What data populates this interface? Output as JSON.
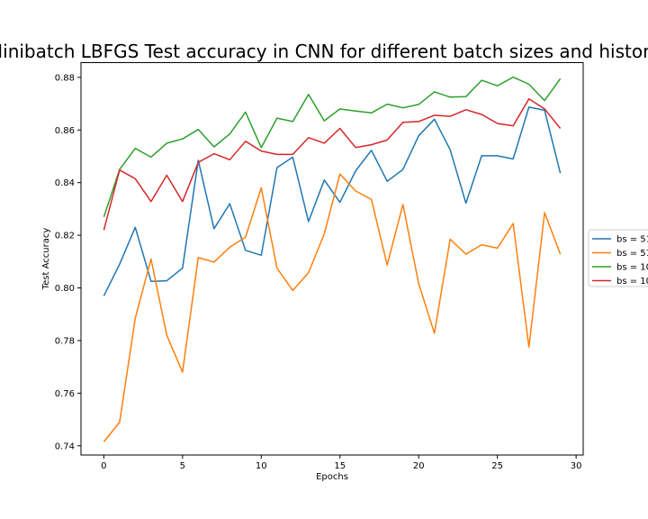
{
  "chart_data": {
    "type": "line",
    "title": "Minibatch LBFGS Test accuracy in CNN for different batch sizes and history",
    "xlabel": "Epochs",
    "ylabel": "Test Accuracy",
    "xlim": [
      -1.45,
      30.45
    ],
    "ylim": [
      0.7365,
      0.8856
    ],
    "xticks": [
      0,
      5,
      10,
      15,
      20,
      25,
      30
    ],
    "yticks": [
      0.74,
      0.76,
      0.78,
      0.8,
      0.82,
      0.84,
      0.86,
      0.88
    ],
    "ytick_labels": [
      "0.74",
      "0.76",
      "0.78",
      "0.80",
      "0.82",
      "0.84",
      "0.86",
      "0.88"
    ],
    "grid": false,
    "legend_placement": "center-right outside",
    "x": [
      0,
      1,
      2,
      3,
      4,
      5,
      6,
      7,
      8,
      9,
      10,
      11,
      12,
      13,
      14,
      15,
      16,
      17,
      18,
      19,
      20,
      21,
      22,
      23,
      24,
      25,
      26,
      27,
      28,
      29
    ],
    "series": [
      {
        "name": "bs = 51",
        "color": "#1f77b4",
        "values": [
          0.797,
          0.809,
          0.823,
          0.8025,
          0.8027,
          0.8075,
          0.8485,
          0.8225,
          0.832,
          0.8143,
          0.8124,
          0.8457,
          0.8497,
          0.8252,
          0.841,
          0.8325,
          0.8445,
          0.8523,
          0.8405,
          0.845,
          0.8578,
          0.8641,
          0.8525,
          0.8322,
          0.8502,
          0.8502,
          0.849,
          0.8687,
          0.8675,
          0.8436
        ]
      },
      {
        "name": "bs = 51",
        "color": "#ff7f0e",
        "values": [
          0.7415,
          0.749,
          0.7885,
          0.811,
          0.782,
          0.768,
          0.8115,
          0.8098,
          0.8155,
          0.8193,
          0.838,
          0.8075,
          0.799,
          0.8058,
          0.8205,
          0.8433,
          0.8368,
          0.8336,
          0.8087,
          0.8317,
          0.8016,
          0.7828,
          0.8185,
          0.8128,
          0.8164,
          0.8151,
          0.8245,
          0.7775,
          0.8286,
          0.8128
        ]
      },
      {
        "name": "bs = 10",
        "color": "#2ca02c",
        "values": [
          0.827,
          0.845,
          0.853,
          0.8497,
          0.855,
          0.8566,
          0.8602,
          0.8536,
          0.8585,
          0.8668,
          0.8533,
          0.8645,
          0.8632,
          0.8735,
          0.8635,
          0.868,
          0.8672,
          0.8665,
          0.8698,
          0.8684,
          0.8697,
          0.8745,
          0.8725,
          0.8727,
          0.8789,
          0.8768,
          0.8801,
          0.8774,
          0.8712,
          0.8795
        ]
      },
      {
        "name": "bs = 10",
        "color": "#d62728",
        "values": [
          0.822,
          0.8448,
          0.8415,
          0.8328,
          0.8428,
          0.8328,
          0.8477,
          0.851,
          0.8487,
          0.8557,
          0.852,
          0.8507,
          0.8507,
          0.8571,
          0.855,
          0.8606,
          0.8533,
          0.8544,
          0.8562,
          0.8629,
          0.8632,
          0.8656,
          0.8652,
          0.8677,
          0.8659,
          0.8625,
          0.8616,
          0.8718,
          0.868,
          0.8606
        ]
      }
    ]
  }
}
